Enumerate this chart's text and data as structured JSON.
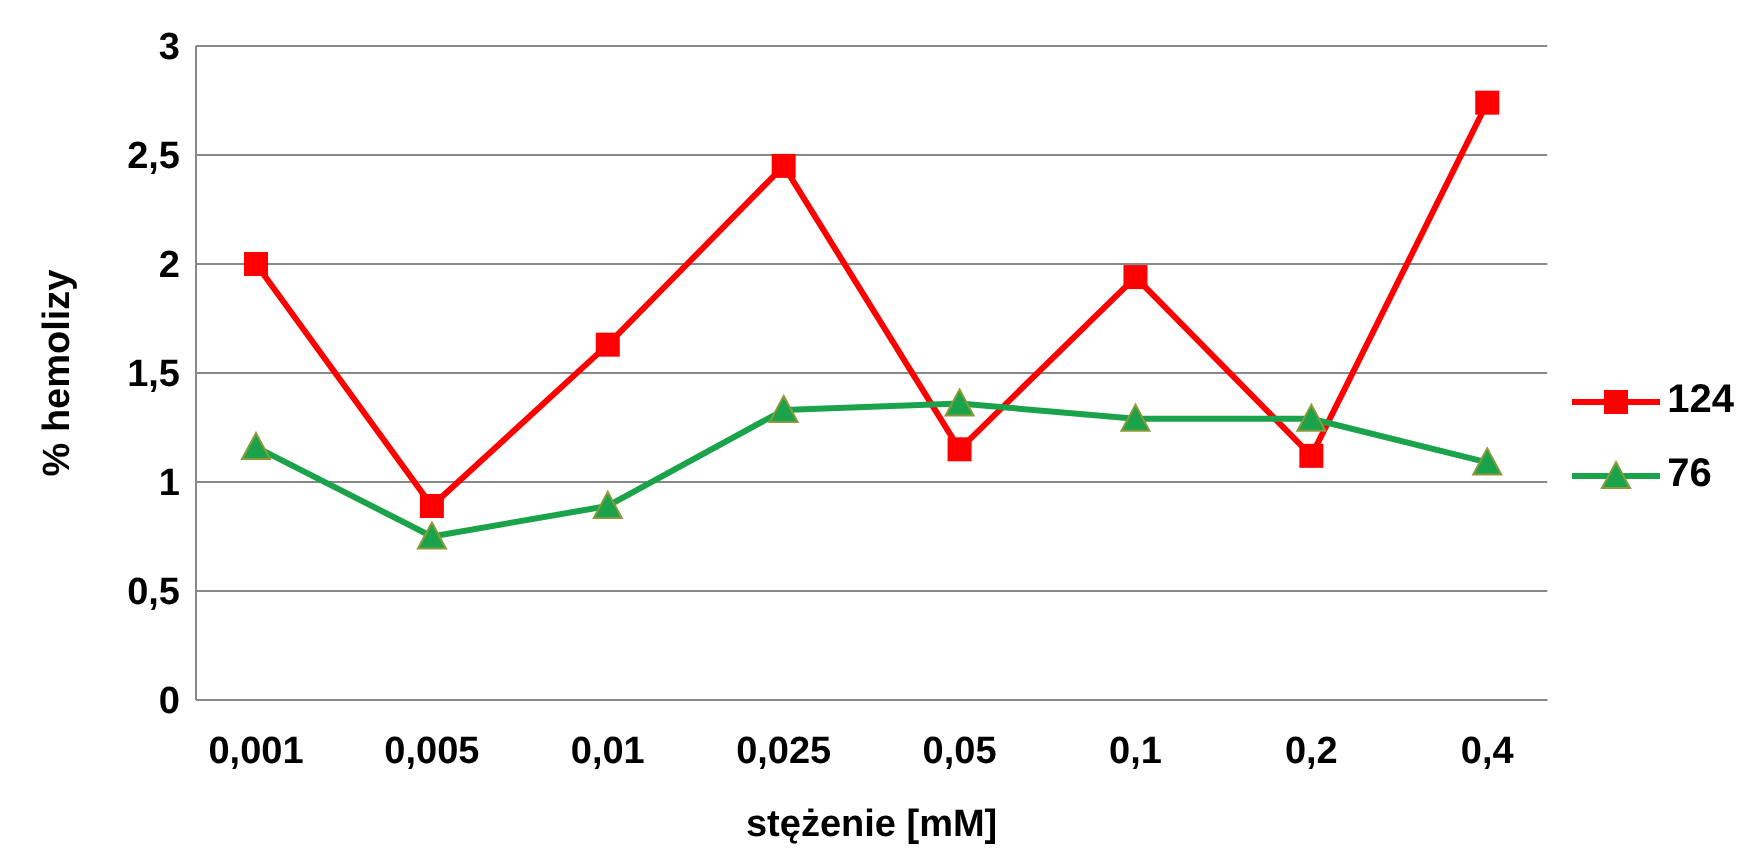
{
  "chart_data": {
    "type": "line",
    "xlabel": "stężenie [mM]",
    "ylabel": "% hemolizy",
    "categories": [
      "0,001",
      "0,005",
      "0,01",
      "0,025",
      "0,05",
      "0,1",
      "0,2",
      "0,4"
    ],
    "series": [
      {
        "name": "124",
        "color": "#ff0000",
        "marker": "square",
        "values": [
          2.0,
          0.89,
          1.63,
          2.45,
          1.15,
          1.94,
          1.12,
          2.74
        ]
      },
      {
        "name": "76",
        "color": "#1aa34a",
        "marker": "triangle",
        "values": [
          1.16,
          0.75,
          0.89,
          1.33,
          1.36,
          1.29,
          1.29,
          1.09
        ]
      }
    ],
    "ylim": [
      0,
      3
    ],
    "yticks": [
      0,
      {
        "value": 0.5,
        "label": "0,5"
      },
      1,
      {
        "value": 1.5,
        "label": "1,5"
      },
      2,
      {
        "value": 2.5,
        "label": "2,5"
      },
      3
    ],
    "grid": "y",
    "legend": "right"
  }
}
